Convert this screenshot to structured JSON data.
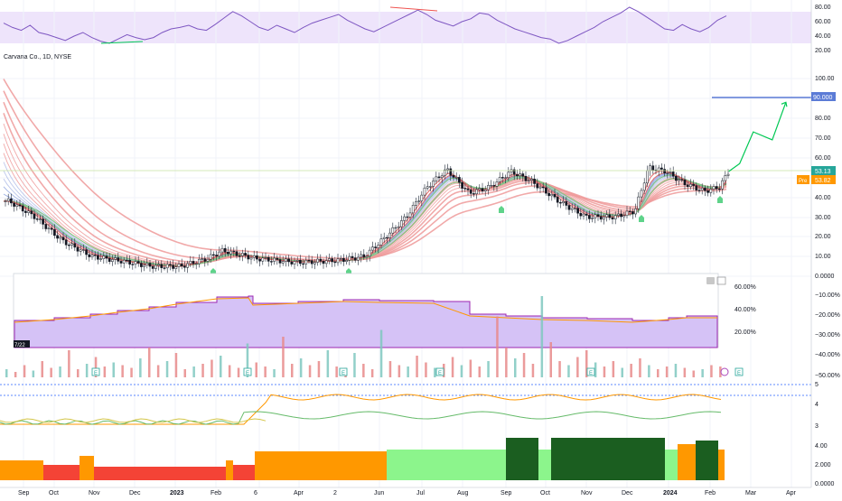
{
  "symbol_title": "Carvana Co., 1D, NYSE",
  "rsi_axis": [
    "80.00",
    "60.00",
    "40.00",
    "20.00"
  ],
  "price_axis": [
    "100.00",
    "90.00",
    "80.00",
    "70.00",
    "60.00",
    "50.00",
    "40.00",
    "30.00",
    "20.00",
    "10.00",
    "0.0000"
  ],
  "sub_axis": [
    "−10.00%",
    "−20.00%",
    "−30.00%",
    "−40.00%",
    "−50.00%"
  ],
  "inner_axis": [
    "60.00%",
    "40.00%",
    "20.00%"
  ],
  "bottom_axis": [
    "4.00",
    "2.000",
    "0.0000"
  ],
  "ind_axis": [
    "5",
    "4",
    "3"
  ],
  "time_axis": [
    "Sep",
    "Oct",
    "Nov",
    "Dec",
    "2023",
    "Feb",
    "6",
    "Apr",
    "2",
    "Jun",
    "Jul",
    "Aug",
    "Sep",
    "Oct",
    "Nov",
    "Dec",
    "2024",
    "Feb",
    "Mar",
    "Apr"
  ],
  "inner_date": "7/22",
  "price_label": "53.13",
  "pre_label": "Pre",
  "pre_value": "53.82",
  "target_label": "90.000",
  "earnings_marker": "E",
  "colors": {
    "up": "#26a69a",
    "down": "#ef5350",
    "rsi": "#7e57c2",
    "rsi_band": "#e9ddf9",
    "ribbon_slow": "#ef9a9a",
    "ribbon_fast": "#81c784",
    "target": "#5b7bd6",
    "projection": "#00c853",
    "orange": "#ff9800",
    "red_fill": "#f44336",
    "light_green": "#8cf58c",
    "dark_green": "#1b5e20"
  },
  "chart_data": {
    "type": "candlestick",
    "title": "Carvana Co., 1D, NYSE",
    "x_range": [
      "2022-09",
      "2024-04"
    ],
    "ylim": [
      0,
      105
    ],
    "last_close": 53.13,
    "premarket": 53.82,
    "target_line": 90,
    "close_series": [
      {
        "date": "2022-09-01",
        "close": 38
      },
      {
        "date": "2022-09-20",
        "close": 30
      },
      {
        "date": "2022-10-10",
        "close": 18
      },
      {
        "date": "2022-11-01",
        "close": 10
      },
      {
        "date": "2022-11-20",
        "close": 8
      },
      {
        "date": "2022-12-15",
        "close": 5
      },
      {
        "date": "2023-01-05",
        "close": 5
      },
      {
        "date": "2023-01-25",
        "close": 9
      },
      {
        "date": "2023-02-05",
        "close": 13
      },
      {
        "date": "2023-03-01",
        "close": 9
      },
      {
        "date": "2023-04-01",
        "close": 7
      },
      {
        "date": "2023-05-01",
        "close": 8
      },
      {
        "date": "2023-05-20",
        "close": 10
      },
      {
        "date": "2023-06-05",
        "close": 20
      },
      {
        "date": "2023-06-20",
        "close": 30
      },
      {
        "date": "2023-07-05",
        "close": 45
      },
      {
        "date": "2023-07-20",
        "close": 54
      },
      {
        "date": "2023-08-05",
        "close": 42
      },
      {
        "date": "2023-08-20",
        "close": 45
      },
      {
        "date": "2023-09-05",
        "close": 53
      },
      {
        "date": "2023-09-20",
        "close": 48
      },
      {
        "date": "2023-10-10",
        "close": 38
      },
      {
        "date": "2023-10-30",
        "close": 30
      },
      {
        "date": "2023-11-20",
        "close": 30
      },
      {
        "date": "2023-12-05",
        "close": 33
      },
      {
        "date": "2023-12-15",
        "close": 55
      },
      {
        "date": "2023-12-28",
        "close": 53
      },
      {
        "date": "2024-01-10",
        "close": 47
      },
      {
        "date": "2024-01-25",
        "close": 43
      },
      {
        "date": "2024-02-05",
        "close": 45
      },
      {
        "date": "2024-02-12",
        "close": 53
      }
    ],
    "projection": [
      {
        "date": "2024-02-12",
        "price": 53
      },
      {
        "date": "2024-02-20",
        "price": 57
      },
      {
        "date": "2024-03-01",
        "price": 73
      },
      {
        "date": "2024-03-15",
        "price": 69
      },
      {
        "date": "2024-03-25",
        "price": 88
      }
    ],
    "rsi": {
      "ylim": [
        20,
        80
      ],
      "values": [
        58,
        52,
        48,
        55,
        45,
        42,
        38,
        34,
        40,
        45,
        38,
        33,
        30,
        36,
        42,
        38,
        35,
        38,
        45,
        50,
        52,
        55,
        50,
        48,
        56,
        65,
        74,
        68,
        60,
        52,
        48,
        55,
        50,
        45,
        52,
        58,
        62,
        66,
        70,
        62,
        56,
        50,
        46,
        52,
        58,
        64,
        70,
        76,
        70,
        62,
        58,
        54,
        60,
        64,
        72,
        70,
        62,
        56,
        50,
        46,
        42,
        38,
        36,
        30,
        34,
        40,
        46,
        52,
        60,
        66,
        72,
        80,
        74,
        66,
        58,
        50,
        48,
        56,
        50,
        46,
        52,
        62,
        68
      ]
    },
    "volume": {
      "ylim": [
        0,
        60
      ],
      "values": [
        6,
        4,
        9,
        5,
        12,
        7,
        8,
        20,
        6,
        10,
        15,
        8,
        11,
        9,
        7,
        14,
        22,
        9,
        12,
        18,
        6,
        8,
        10,
        13,
        16,
        9,
        7,
        25,
        11,
        8,
        6,
        30,
        10,
        14,
        9,
        12,
        20,
        8,
        7,
        18,
        10,
        6,
        35,
        12,
        9,
        8,
        16,
        11,
        7,
        10,
        15,
        9,
        13,
        8,
        12,
        45,
        22,
        14,
        18,
        10,
        60,
        26,
        12,
        9,
        15,
        20,
        11,
        8,
        12,
        7,
        10,
        14,
        9,
        6,
        8,
        10,
        7,
        5,
        6,
        9,
        8
      ]
    }
  }
}
